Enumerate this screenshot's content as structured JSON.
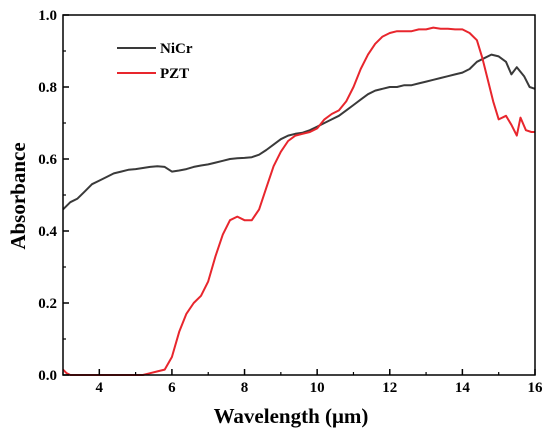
{
  "chart_data": {
    "type": "line",
    "title": "",
    "xlabel": "Wavelength (μm)",
    "ylabel": "Absorbance",
    "xlim": [
      3,
      16
    ],
    "ylim": [
      0.0,
      1.0
    ],
    "x_ticks": [
      4,
      6,
      8,
      10,
      12,
      14,
      16
    ],
    "x_tick_labels": [
      "4",
      "6",
      "8",
      "10",
      "12",
      "14",
      "16"
    ],
    "y_ticks": [
      0.0,
      0.2,
      0.4,
      0.6,
      0.8,
      1.0
    ],
    "y_tick_labels": [
      "0.0",
      "0.2",
      "0.4",
      "0.6",
      "0.8",
      "1.0"
    ],
    "grid": false,
    "legend_position": "top-left",
    "series": [
      {
        "name": "NiCr",
        "color": "#3a3a3a",
        "points": [
          [
            3.0,
            0.46
          ],
          [
            3.2,
            0.48
          ],
          [
            3.4,
            0.49
          ],
          [
            3.6,
            0.51
          ],
          [
            3.8,
            0.53
          ],
          [
            4.0,
            0.54
          ],
          [
            4.2,
            0.55
          ],
          [
            4.4,
            0.56
          ],
          [
            4.6,
            0.565
          ],
          [
            4.8,
            0.57
          ],
          [
            5.0,
            0.572
          ],
          [
            5.2,
            0.575
          ],
          [
            5.4,
            0.578
          ],
          [
            5.6,
            0.58
          ],
          [
            5.8,
            0.578
          ],
          [
            6.0,
            0.565
          ],
          [
            6.2,
            0.568
          ],
          [
            6.4,
            0.572
          ],
          [
            6.6,
            0.578
          ],
          [
            6.8,
            0.582
          ],
          [
            7.0,
            0.585
          ],
          [
            7.2,
            0.59
          ],
          [
            7.4,
            0.595
          ],
          [
            7.6,
            0.6
          ],
          [
            7.8,
            0.602
          ],
          [
            8.0,
            0.603
          ],
          [
            8.2,
            0.605
          ],
          [
            8.4,
            0.612
          ],
          [
            8.6,
            0.625
          ],
          [
            8.8,
            0.64
          ],
          [
            9.0,
            0.655
          ],
          [
            9.2,
            0.665
          ],
          [
            9.4,
            0.67
          ],
          [
            9.6,
            0.673
          ],
          [
            9.8,
            0.68
          ],
          [
            10.0,
            0.69
          ],
          [
            10.2,
            0.7
          ],
          [
            10.4,
            0.71
          ],
          [
            10.6,
            0.72
          ],
          [
            10.8,
            0.735
          ],
          [
            11.0,
            0.75
          ],
          [
            11.2,
            0.765
          ],
          [
            11.4,
            0.78
          ],
          [
            11.6,
            0.79
          ],
          [
            11.8,
            0.795
          ],
          [
            12.0,
            0.8
          ],
          [
            12.2,
            0.8
          ],
          [
            12.4,
            0.805
          ],
          [
            12.6,
            0.805
          ],
          [
            12.8,
            0.81
          ],
          [
            13.0,
            0.815
          ],
          [
            13.2,
            0.82
          ],
          [
            13.4,
            0.825
          ],
          [
            13.6,
            0.83
          ],
          [
            13.8,
            0.835
          ],
          [
            14.0,
            0.84
          ],
          [
            14.2,
            0.85
          ],
          [
            14.4,
            0.87
          ],
          [
            14.6,
            0.88
          ],
          [
            14.8,
            0.89
          ],
          [
            15.0,
            0.885
          ],
          [
            15.2,
            0.87
          ],
          [
            15.35,
            0.835
          ],
          [
            15.5,
            0.855
          ],
          [
            15.7,
            0.83
          ],
          [
            15.85,
            0.8
          ],
          [
            16.0,
            0.795
          ]
        ]
      },
      {
        "name": "PZT",
        "color": "#e8262d",
        "points": [
          [
            3.0,
            0.015
          ],
          [
            3.1,
            0.005
          ],
          [
            3.2,
            0.0
          ],
          [
            5.2,
            0.0
          ],
          [
            5.4,
            0.005
          ],
          [
            5.6,
            0.01
          ],
          [
            5.8,
            0.015
          ],
          [
            6.0,
            0.05
          ],
          [
            6.2,
            0.12
          ],
          [
            6.4,
            0.17
          ],
          [
            6.6,
            0.2
          ],
          [
            6.8,
            0.22
          ],
          [
            7.0,
            0.26
          ],
          [
            7.2,
            0.33
          ],
          [
            7.4,
            0.39
          ],
          [
            7.6,
            0.43
          ],
          [
            7.8,
            0.44
          ],
          [
            8.0,
            0.43
          ],
          [
            8.2,
            0.43
          ],
          [
            8.4,
            0.46
          ],
          [
            8.6,
            0.52
          ],
          [
            8.8,
            0.58
          ],
          [
            9.0,
            0.62
          ],
          [
            9.2,
            0.65
          ],
          [
            9.4,
            0.665
          ],
          [
            9.6,
            0.67
          ],
          [
            9.8,
            0.675
          ],
          [
            10.0,
            0.685
          ],
          [
            10.2,
            0.71
          ],
          [
            10.4,
            0.725
          ],
          [
            10.6,
            0.735
          ],
          [
            10.8,
            0.76
          ],
          [
            11.0,
            0.8
          ],
          [
            11.2,
            0.85
          ],
          [
            11.4,
            0.89
          ],
          [
            11.6,
            0.92
          ],
          [
            11.8,
            0.94
          ],
          [
            12.0,
            0.95
          ],
          [
            12.2,
            0.955
          ],
          [
            12.4,
            0.955
          ],
          [
            12.6,
            0.955
          ],
          [
            12.8,
            0.96
          ],
          [
            13.0,
            0.96
          ],
          [
            13.2,
            0.965
          ],
          [
            13.4,
            0.962
          ],
          [
            13.6,
            0.962
          ],
          [
            13.8,
            0.96
          ],
          [
            14.0,
            0.96
          ],
          [
            14.2,
            0.95
          ],
          [
            14.4,
            0.93
          ],
          [
            14.55,
            0.88
          ],
          [
            14.7,
            0.82
          ],
          [
            14.85,
            0.76
          ],
          [
            15.0,
            0.71
          ],
          [
            15.2,
            0.72
          ],
          [
            15.35,
            0.695
          ],
          [
            15.5,
            0.665
          ],
          [
            15.6,
            0.715
          ],
          [
            15.75,
            0.68
          ],
          [
            15.9,
            0.675
          ],
          [
            16.0,
            0.675
          ]
        ]
      }
    ]
  }
}
